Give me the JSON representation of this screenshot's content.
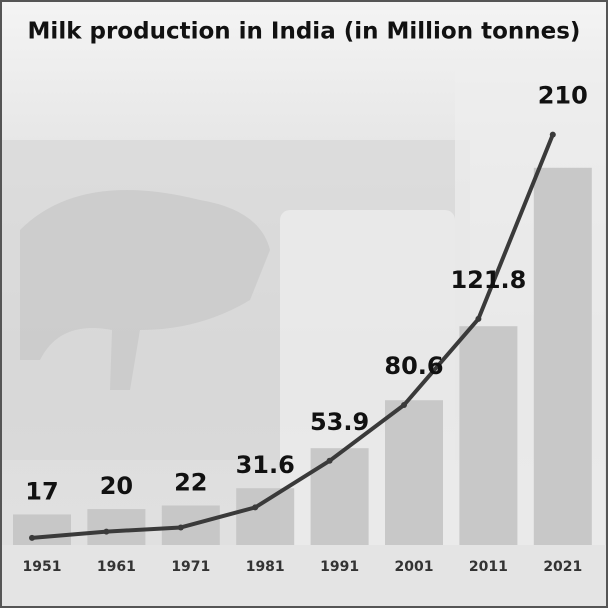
{
  "chart_data": {
    "type": "bar-line",
    "title": "Milk production in India (in Million tonnes)",
    "categories": [
      "1951",
      "1961",
      "1971",
      "1981",
      "1991",
      "2001",
      "2011",
      "2021"
    ],
    "values": [
      17,
      20,
      22,
      31.6,
      53.9,
      80.6,
      121.8,
      210
    ],
    "bar_color": "#c4c4c4",
    "line_color": "#3a3a3a",
    "ylim": [
      0,
      270
    ],
    "y2lim": [
      13.6,
      245.7
    ]
  }
}
